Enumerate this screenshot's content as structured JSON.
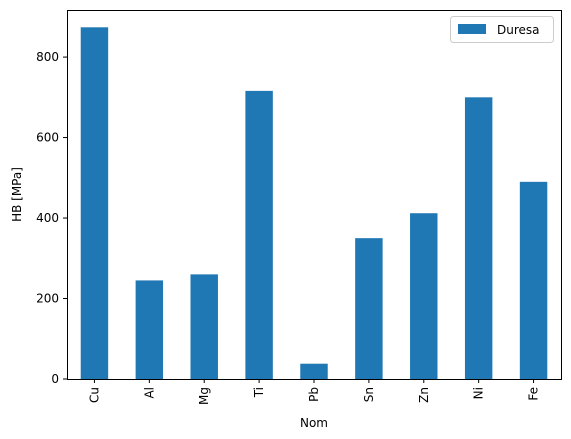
{
  "chart_data": {
    "type": "bar",
    "categories": [
      "Cu",
      "Al",
      "Mg",
      "Ti",
      "Pb",
      "Sn",
      "Zn",
      "Ni",
      "Fe"
    ],
    "series": [
      {
        "name": "Duresa",
        "values": [
          874,
          245,
          260,
          716,
          38,
          350,
          412,
          700,
          490
        ]
      }
    ],
    "title": "",
    "xlabel": "Nom",
    "ylabel": "HB  [MPa]",
    "ylim": [
      0,
      917
    ],
    "yticks": [
      0,
      200,
      400,
      600,
      800
    ],
    "grid": false,
    "legend_position": "top-right",
    "bar_color": "#1f77b4"
  }
}
